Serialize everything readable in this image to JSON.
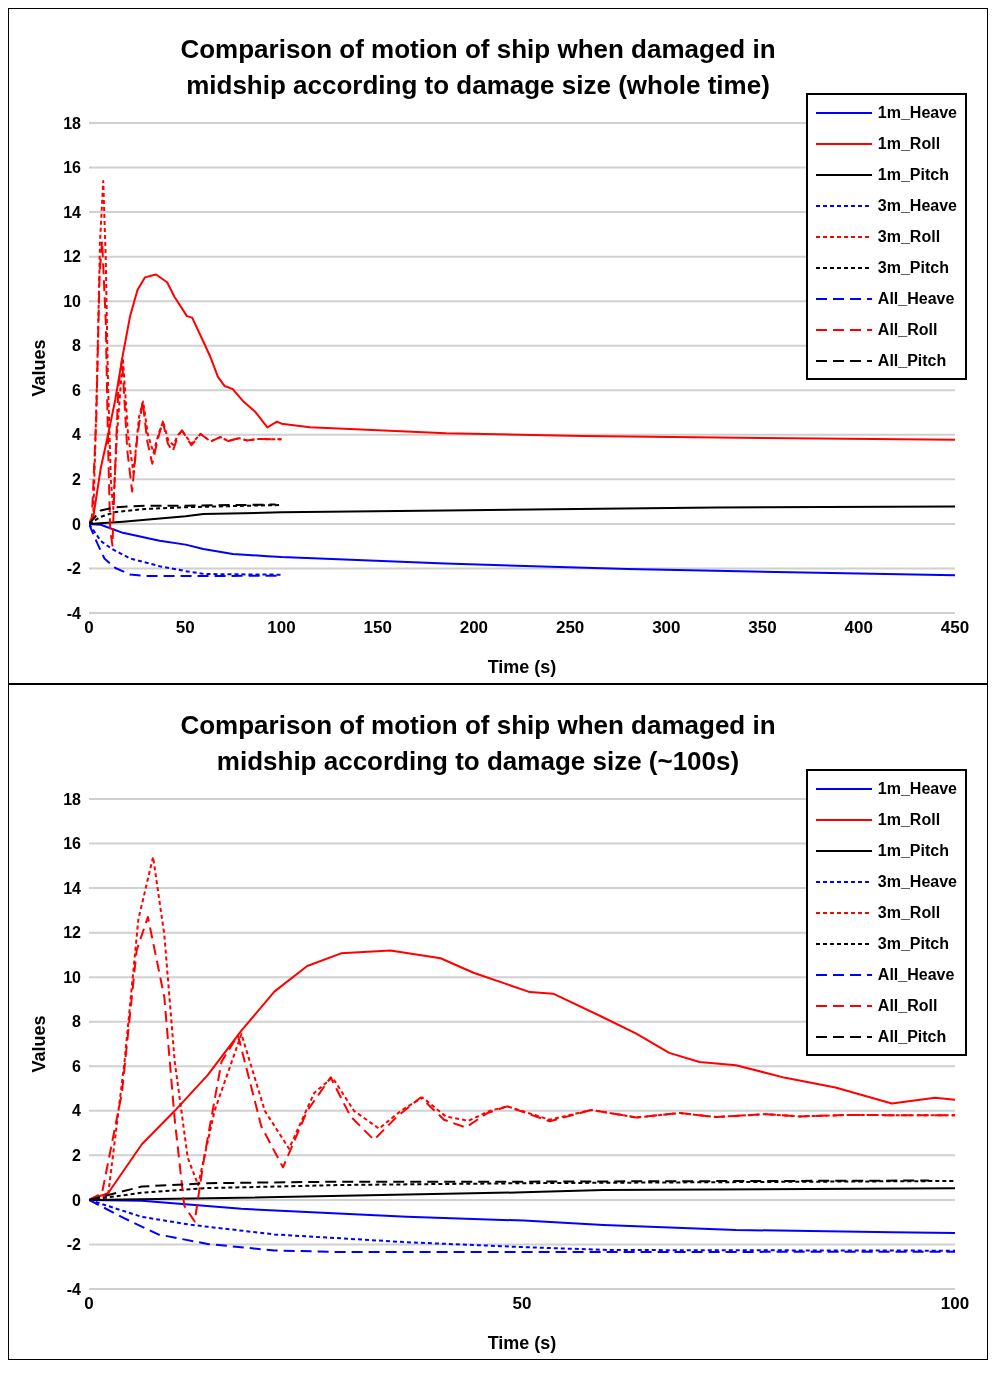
{
  "chart_data": [
    {
      "type": "line",
      "title": "Comparison of motion of ship when damaged in midship according to damage size (whole time)",
      "xlabel": "Time (s)",
      "ylabel": "Values",
      "xlim": [
        0,
        450
      ],
      "xticks": [
        0,
        50,
        100,
        150,
        200,
        250,
        300,
        350,
        400,
        450
      ],
      "ylim": [
        -4,
        18
      ],
      "yticks": [
        -4,
        -2,
        0,
        2,
        4,
        6,
        8,
        10,
        12,
        14,
        16,
        18
      ],
      "grid": "y",
      "legend": "top right",
      "series": [
        {
          "name": "1m_Heave",
          "color": "#0000ff",
          "line_style": "solid",
          "x": [
            0,
            6.1,
            17.6,
            36.7,
            50.2,
            59.4,
            74.7,
            92.7,
            100,
            185,
            280,
            450
          ],
          "values": [
            0,
            -0.04,
            -0.4,
            -0.76,
            -0.93,
            -1.13,
            -1.35,
            -1.45,
            -1.49,
            -1.78,
            -2.03,
            -2.31
          ]
        },
        {
          "name": "1m_Roll",
          "color": "#ff0000",
          "line_style": "solid",
          "x": [
            0,
            2.2,
            6.1,
            9.9,
            13.7,
            17.6,
            21.4,
            25.2,
            29.1,
            34.8,
            40.6,
            44.4,
            50.9,
            53.6,
            59.4,
            63.2,
            67,
            70.5,
            74.7,
            80.4,
            86.2,
            92.7,
            97.7,
            100,
            114.8,
            185.5,
            256,
            350,
            450
          ],
          "values": [
            0,
            0.3,
            2.5,
            4.0,
            5.6,
            7.6,
            9.35,
            10.5,
            11.07,
            11.2,
            10.85,
            10.2,
            9.33,
            9.26,
            8.19,
            7.47,
            6.6,
            6.19,
            6.05,
            5.48,
            5.05,
            4.33,
            4.59,
            4.5,
            4.34,
            4.07,
            3.95,
            3.86,
            3.78
          ]
        },
        {
          "name": "1m_Pitch",
          "color": "#000000",
          "line_style": "solid",
          "x": [
            0,
            17.6,
            50.2,
            59.4,
            100,
            185,
            326,
            450
          ],
          "values": [
            0,
            0.1,
            0.34,
            0.44,
            0.52,
            0.6,
            0.74,
            0.78
          ]
        },
        {
          "name": "3m_Heave",
          "color": "#0000ff",
          "line_style": "dotted",
          "x": [
            0,
            6.1,
            11.8,
            21.4,
            36.7,
            50.2,
            60,
            100
          ],
          "values": [
            0,
            -0.76,
            -1.12,
            -1.55,
            -1.9,
            -2.12,
            -2.25,
            -2.28
          ]
        },
        {
          "name": "3m_Roll",
          "color": "#ff0000",
          "line_style": "dotted",
          "x": [
            0,
            2.2,
            4.1,
            5.7,
            7.4,
            8.7,
            9.9,
            11.4,
            12.6,
            14.5,
            17.6,
            20.3,
            23.1,
            26,
            28.1,
            30.6,
            33.5,
            36,
            38.5,
            41.2,
            43.8,
            46.3,
            48.3,
            53.2,
            58,
            63.2,
            68.2,
            72.4,
            78.1,
            82,
            87.4,
            100
          ],
          "values": [
            0,
            0.2,
            6.2,
            12.6,
            15.4,
            11.9,
            6.2,
            1.9,
            0.67,
            4.0,
            7.45,
            4.0,
            2.3,
            4.8,
            5.5,
            4.0,
            3.2,
            4.0,
            4.6,
            3.75,
            3.55,
            4.0,
            4.2,
            3.6,
            4.04,
            3.7,
            3.9,
            3.72,
            3.85,
            3.75,
            3.81,
            3.8
          ]
        },
        {
          "name": "3m_Pitch",
          "color": "#000000",
          "line_style": "dotted",
          "x": [
            0,
            6.1,
            13.7,
            29.1,
            50.2,
            100
          ],
          "values": [
            0,
            0.32,
            0.53,
            0.67,
            0.75,
            0.85
          ]
        },
        {
          "name": "All_Heave",
          "color": "#0000ff",
          "line_style": "dashed",
          "x": [
            0,
            4.1,
            8,
            13.7,
            21.4,
            29.1,
            100
          ],
          "values": [
            0,
            -0.83,
            -1.55,
            -1.98,
            -2.27,
            -2.34,
            -2.33
          ]
        },
        {
          "name": "All_Roll",
          "color": "#ff0000",
          "line_style": "dashed",
          "x": [
            0,
            1.5,
            3.8,
            5.5,
            6.8,
            8.7,
            9.9,
            11,
            12.2,
            13.3,
            15.3,
            17.2,
            19.9,
            22.4,
            25.2,
            27.9,
            30.2,
            32.9,
            35.6,
            38.3,
            41,
            43.5,
            46,
            48.3,
            53.2,
            58,
            63.2,
            68.2,
            72.4,
            78.1,
            82,
            87.4,
            100
          ],
          "values": [
            0,
            0.3,
            4.8,
            11.2,
            12.7,
            9.1,
            3.6,
            -0.26,
            -0.97,
            1.9,
            6.2,
            7.4,
            3.3,
            1.46,
            4.0,
            5.5,
            3.75,
            2.7,
            3.75,
            4.6,
            3.6,
            3.25,
            3.9,
            4.2,
            3.53,
            4.04,
            3.7,
            3.9,
            3.72,
            3.85,
            3.75,
            3.81,
            3.8
          ]
        },
        {
          "name": "All_Pitch",
          "color": "#000000",
          "line_style": "dashed",
          "x": [
            0,
            6.1,
            13.7,
            29.1,
            50.2,
            97
          ],
          "values": [
            0,
            0.6,
            0.75,
            0.82,
            0.82,
            0.87
          ]
        }
      ]
    },
    {
      "type": "line",
      "title": "Comparison of motion of ship when damaged in midship according to damage size (~100s)",
      "xlabel": "Time (s)",
      "ylabel": "Values",
      "xlim": [
        0,
        100
      ],
      "xticks": [
        0,
        50,
        100
      ],
      "ylim": [
        -4,
        18
      ],
      "yticks": [
        -4,
        -2,
        0,
        2,
        4,
        6,
        8,
        10,
        12,
        14,
        16,
        18
      ],
      "grid": "y",
      "legend": "top right",
      "series": [
        {
          "name": "1m_Heave",
          "color": "#0000ff",
          "line_style": "solid",
          "x": [
            0,
            6.1,
            17.6,
            36.7,
            50.2,
            59.4,
            74.7,
            92.7,
            100
          ],
          "values": [
            0,
            -0.04,
            -0.4,
            -0.76,
            -0.93,
            -1.13,
            -1.35,
            -1.45,
            -1.49
          ]
        },
        {
          "name": "1m_Roll",
          "color": "#ff0000",
          "line_style": "solid",
          "x": [
            0,
            2.2,
            6.1,
            9.9,
            13.7,
            17.6,
            21.4,
            25.2,
            29.1,
            34.8,
            40.6,
            44.4,
            50.9,
            53.6,
            59.4,
            63.2,
            67,
            70.5,
            74.7,
            80.4,
            86.2,
            92.7,
            97.7,
            100
          ],
          "values": [
            0,
            0.3,
            2.5,
            4.0,
            5.6,
            7.6,
            9.35,
            10.5,
            11.07,
            11.2,
            10.85,
            10.2,
            9.33,
            9.26,
            8.19,
            7.47,
            6.6,
            6.19,
            6.05,
            5.48,
            5.05,
            4.33,
            4.59,
            4.5
          ]
        },
        {
          "name": "1m_Pitch",
          "color": "#000000",
          "line_style": "solid",
          "x": [
            0,
            17.6,
            50.2,
            59.4,
            100
          ],
          "values": [
            0,
            0.1,
            0.34,
            0.44,
            0.52
          ]
        },
        {
          "name": "3m_Heave",
          "color": "#0000ff",
          "line_style": "dotted",
          "x": [
            0,
            6.1,
            11.8,
            21.4,
            36.7,
            50.2,
            60,
            100
          ],
          "values": [
            0,
            -0.76,
            -1.12,
            -1.55,
            -1.9,
            -2.12,
            -2.25,
            -2.28
          ]
        },
        {
          "name": "3m_Roll",
          "color": "#ff0000",
          "line_style": "dotted",
          "x": [
            0,
            2.2,
            4.1,
            5.7,
            7.4,
            8.7,
            9.9,
            11.4,
            12.6,
            14.5,
            17.6,
            20.3,
            23.1,
            26,
            28.1,
            30.6,
            33.5,
            36,
            38.5,
            41.2,
            43.8,
            46.3,
            48.3,
            53.2,
            58,
            63.2,
            68.2,
            72.4,
            78.1,
            82,
            87.4,
            100
          ],
          "values": [
            0,
            0.2,
            6.2,
            12.6,
            15.4,
            11.9,
            6.2,
            1.9,
            0.67,
            4.0,
            7.45,
            4.0,
            2.3,
            4.8,
            5.5,
            4.0,
            3.2,
            4.0,
            4.6,
            3.75,
            3.55,
            4.0,
            4.2,
            3.6,
            4.04,
            3.7,
            3.9,
            3.72,
            3.85,
            3.75,
            3.81,
            3.8
          ]
        },
        {
          "name": "3m_Pitch",
          "color": "#000000",
          "line_style": "dotted",
          "x": [
            0,
            6.1,
            13.7,
            29.1,
            50.2,
            100
          ],
          "values": [
            0,
            0.32,
            0.53,
            0.67,
            0.75,
            0.85
          ]
        },
        {
          "name": "All_Heave",
          "color": "#0000ff",
          "line_style": "dashed",
          "x": [
            0,
            4.1,
            8,
            13.7,
            21.4,
            29.1,
            100
          ],
          "values": [
            0,
            -0.83,
            -1.55,
            -1.98,
            -2.27,
            -2.34,
            -2.33
          ]
        },
        {
          "name": "All_Roll",
          "color": "#ff0000",
          "line_style": "dashed",
          "x": [
            0,
            1.5,
            3.8,
            5.5,
            6.8,
            8.7,
            9.9,
            11,
            12.2,
            13.3,
            15.3,
            17.2,
            19.9,
            22.4,
            25.2,
            27.9,
            30.2,
            32.9,
            35.6,
            38.3,
            41,
            43.5,
            46,
            48.3,
            53.2,
            58,
            63.2,
            68.2,
            72.4,
            78.1,
            82,
            87.4,
            100
          ],
          "values": [
            0,
            0.3,
            4.8,
            11.2,
            12.7,
            9.1,
            3.6,
            -0.26,
            -0.97,
            1.9,
            6.2,
            7.4,
            3.3,
            1.46,
            4.0,
            5.5,
            3.75,
            2.7,
            3.75,
            4.6,
            3.6,
            3.25,
            3.9,
            4.2,
            3.53,
            4.04,
            3.7,
            3.9,
            3.72,
            3.85,
            3.75,
            3.81,
            3.8
          ]
        },
        {
          "name": "All_Pitch",
          "color": "#000000",
          "line_style": "dashed",
          "x": [
            0,
            6.1,
            13.7,
            29.1,
            50.2,
            97
          ],
          "values": [
            0,
            0.6,
            0.75,
            0.82,
            0.82,
            0.87
          ]
        }
      ]
    }
  ]
}
